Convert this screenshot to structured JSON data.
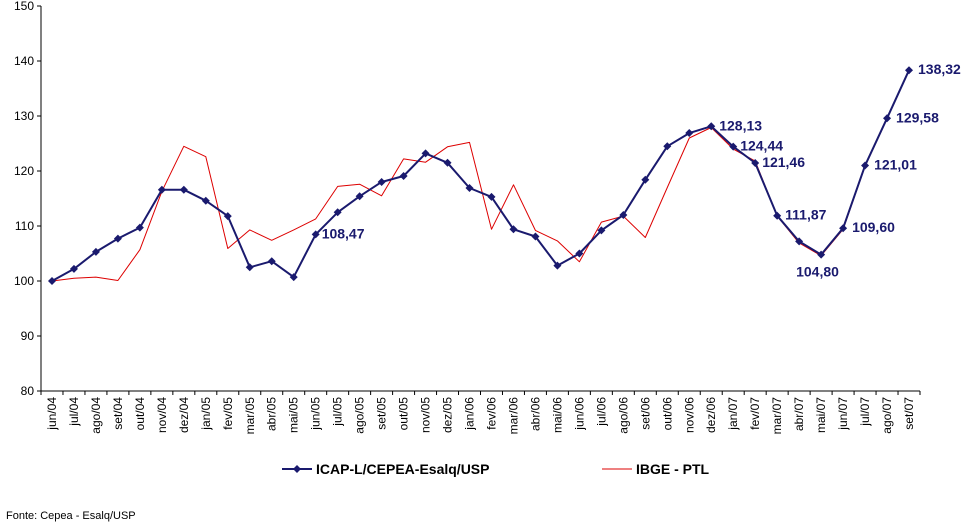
{
  "colors": {
    "icap": "#1a1a6e",
    "ibge": "#dd0000",
    "axis": "#000000"
  },
  "source": "Fonte: Cepea - Esalq/USP",
  "chart_data": {
    "type": "line",
    "title": "",
    "xlabel": "",
    "ylabel": "",
    "ylim": [
      80,
      150
    ],
    "yticks": [
      "80",
      "90",
      "100",
      "110",
      "120",
      "130",
      "140",
      "150"
    ],
    "grid": false,
    "legend": "bottom",
    "categories": [
      "jun/04",
      "jul/04",
      "ago/04",
      "set/04",
      "out/04",
      "nov/04",
      "dez/04",
      "jan/05",
      "fev/05",
      "mar/05",
      "abr/05",
      "mai/05",
      "jun/05",
      "jul/05",
      "ago/05",
      "set/05",
      "out/05",
      "nov/05",
      "dez/05",
      "jan/06",
      "fev/06",
      "mar/06",
      "abr/06",
      "mai/06",
      "jun/06",
      "jul/06",
      "ago/06",
      "set/06",
      "out/06",
      "nov/06",
      "dez/06",
      "jan/07",
      "fev/07",
      "mar/07",
      "abr/07",
      "mai/07",
      "jun/07",
      "jul/07",
      "ago/07",
      "set/07"
    ],
    "series": [
      {
        "name": "ICAP-L/CEPEA-Esalq/USP",
        "color": "#1a1a6e",
        "markers": true,
        "values": [
          100.0,
          102.2,
          105.3,
          107.7,
          109.7,
          116.6,
          116.6,
          114.6,
          111.8,
          102.5,
          103.6,
          100.7,
          108.47,
          112.5,
          115.4,
          118.0,
          119.1,
          123.2,
          121.5,
          116.9,
          115.3,
          109.4,
          108.1,
          102.8,
          105.0,
          109.2,
          112.0,
          118.4,
          124.5,
          126.9,
          128.13,
          124.44,
          121.46,
          111.87,
          107.2,
          104.8,
          109.6,
          121.01,
          129.58,
          138.32
        ]
      },
      {
        "name": "IBGE - PTL",
        "color": "#dd0000",
        "markers": false,
        "values": [
          100.0,
          100.5,
          100.7,
          100.1,
          105.7,
          116.3,
          124.5,
          122.6,
          105.9,
          109.3,
          107.4,
          109.3,
          111.3,
          117.2,
          117.6,
          115.5,
          122.2,
          121.6,
          124.4,
          125.2,
          109.4,
          117.5,
          109.2,
          107.3,
          103.5,
          110.7,
          111.8,
          107.9,
          117.0,
          126.0,
          127.9,
          124.0,
          121.8,
          111.8,
          106.9,
          104.6,
          109.4,
          120.9,
          129.5,
          138.3
        ]
      }
    ],
    "annotations": [
      {
        "index": 12,
        "text": "108,47"
      },
      {
        "index": 30,
        "text": "128,13"
      },
      {
        "index": 31,
        "text": "124,44"
      },
      {
        "index": 32,
        "text": "121,46"
      },
      {
        "index": 33,
        "text": "111,87"
      },
      {
        "index": 35,
        "text": "104,80"
      },
      {
        "index": 36,
        "text": "109,60"
      },
      {
        "index": 37,
        "text": "121,01"
      },
      {
        "index": 38,
        "text": "129,58"
      },
      {
        "index": 39,
        "text": "138,32"
      }
    ]
  }
}
